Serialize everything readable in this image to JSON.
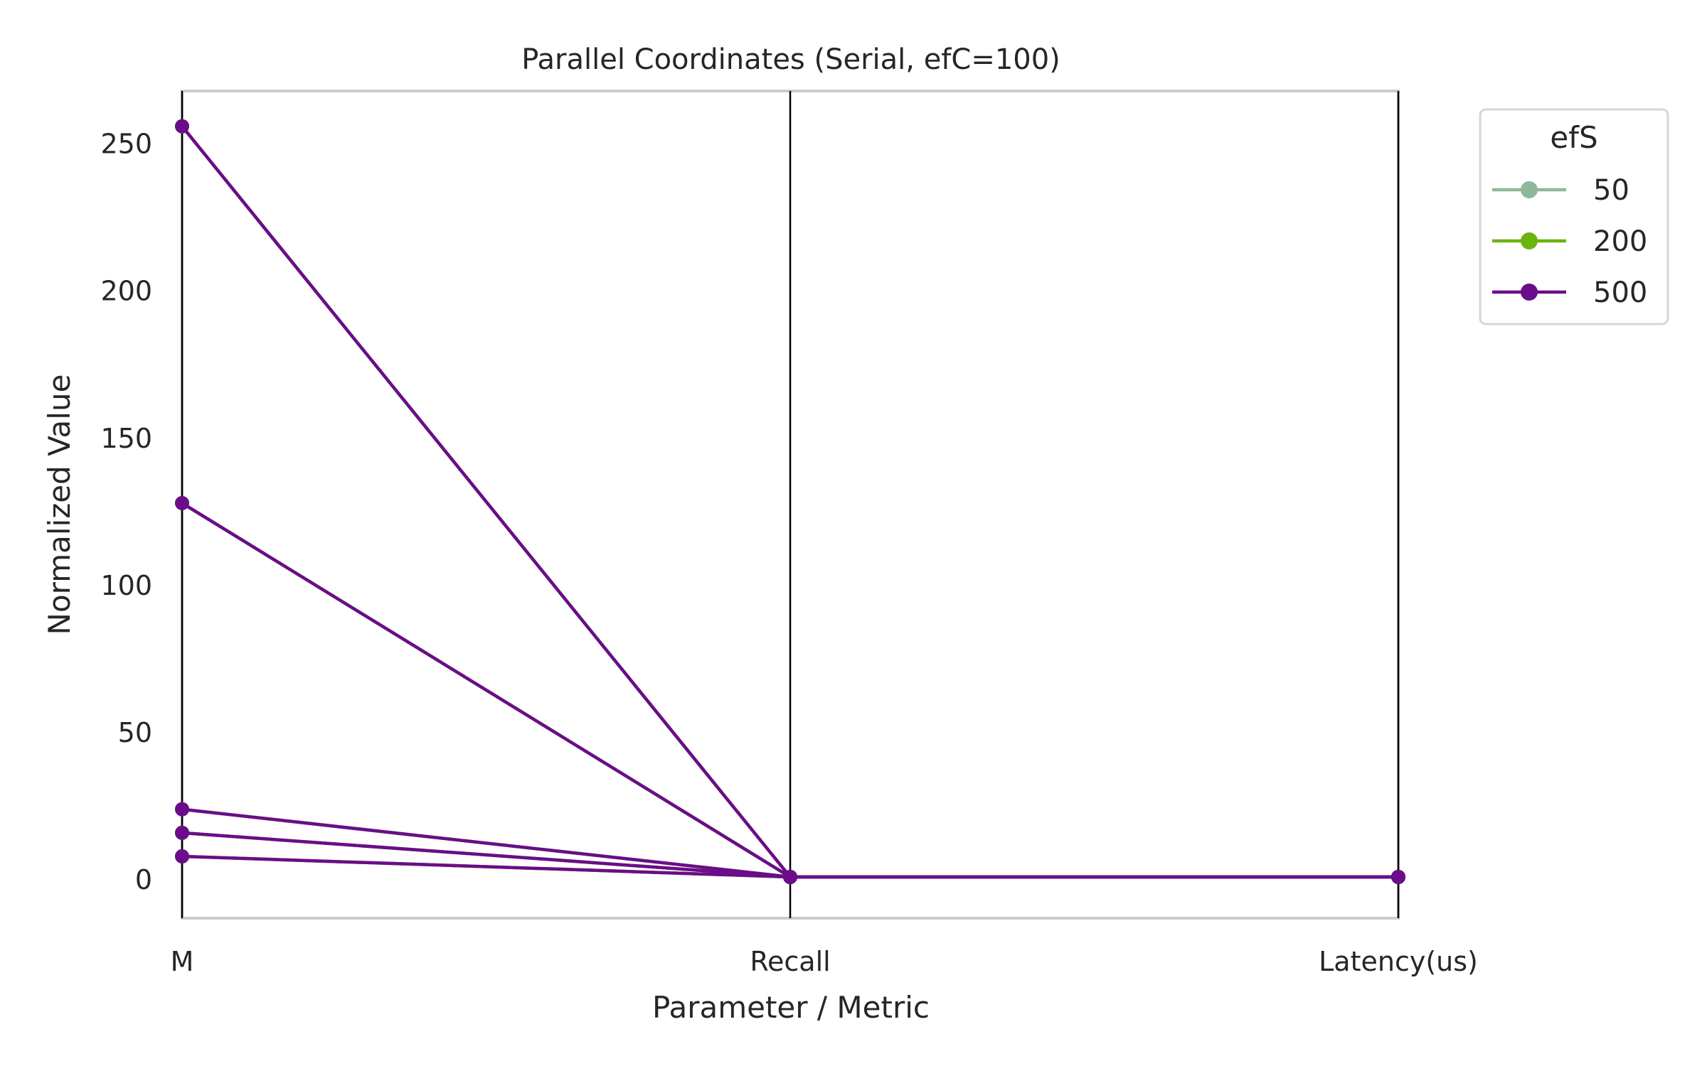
{
  "chart_data": {
    "type": "line",
    "title": "Parallel Coordinates (Serial, efC=100)",
    "xlabel": "Parameter / Metric",
    "ylabel": "Normalized Value",
    "categories": [
      "M",
      "Recall",
      "Latency(us)"
    ],
    "ylim": [
      -13,
      268
    ],
    "yticks": [
      0,
      50,
      100,
      150,
      200,
      250
    ],
    "grid": false,
    "legend": {
      "title": "efS",
      "placement": "top-right outside",
      "entries": [
        {
          "label": "50",
          "color": "#8fb89a"
        },
        {
          "label": "200",
          "color": "#6bb30f"
        },
        {
          "label": "500",
          "color": "#6b0c8a"
        }
      ]
    },
    "series": [
      {
        "values": [
          8,
          1,
          1
        ],
        "color": "#8fb89a"
      },
      {
        "values": [
          16,
          1,
          1
        ],
        "color": "#8fb89a"
      },
      {
        "values": [
          24,
          1,
          1
        ],
        "color": "#8fb89a"
      },
      {
        "values": [
          128,
          1,
          1
        ],
        "color": "#8fb89a"
      },
      {
        "values": [
          256,
          1,
          1
        ],
        "color": "#8fb89a"
      },
      {
        "values": [
          8,
          1,
          1
        ],
        "color": "#6bb30f"
      },
      {
        "values": [
          16,
          1,
          1
        ],
        "color": "#6bb30f"
      },
      {
        "values": [
          24,
          1,
          1
        ],
        "color": "#6bb30f"
      },
      {
        "values": [
          128,
          1,
          1
        ],
        "color": "#6bb30f"
      },
      {
        "values": [
          256,
          1,
          1
        ],
        "color": "#6bb30f"
      },
      {
        "values": [
          8,
          1,
          1
        ],
        "color": "#6b0c8a"
      },
      {
        "values": [
          16,
          1,
          1
        ],
        "color": "#6b0c8a"
      },
      {
        "values": [
          24,
          1,
          1
        ],
        "color": "#6b0c8a"
      },
      {
        "values": [
          128,
          1,
          1
        ],
        "color": "#6b0c8a"
      },
      {
        "values": [
          256,
          1,
          1
        ],
        "color": "#6b0c8a"
      }
    ],
    "axis_color": "#cccccc",
    "vertical_line_color": "#000000"
  }
}
